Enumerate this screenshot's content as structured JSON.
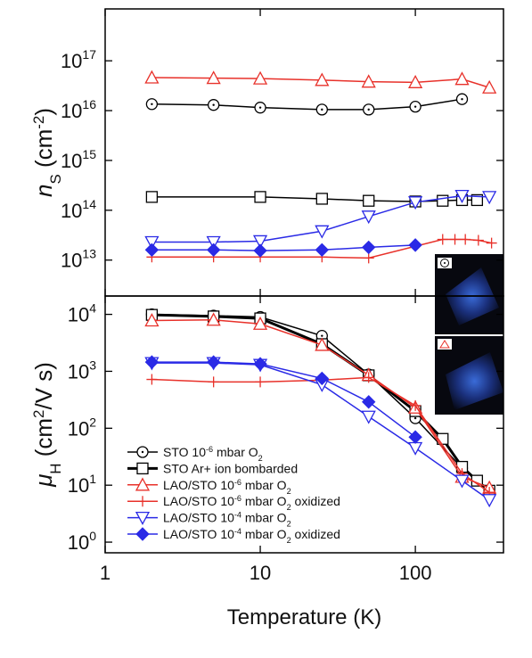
{
  "chart_data": [
    {
      "type": "line",
      "xscale": "log",
      "yscale": "log",
      "xlim": [
        1,
        370
      ],
      "ylim": [
        1900000000000.0,
        1.1e+18
      ],
      "yticks": [
        {
          "value": 10000000000000.0,
          "label": "10",
          "exponent": "13"
        },
        {
          "value": 100000000000000.0,
          "label": "10",
          "exponent": "14"
        },
        {
          "value": 1000000000000000.0,
          "label": "10",
          "exponent": "15"
        },
        {
          "value": 1e+16,
          "label": "10",
          "exponent": "16"
        },
        {
          "value": 1e+17,
          "label": "10",
          "exponent": "17"
        }
      ],
      "ylabel": [
        {
          "text": "n",
          "style": "italic"
        },
        {
          "text": "S",
          "style": "sub"
        },
        {
          "text": " (cm",
          "style": "normal"
        },
        {
          "text": "-2",
          "style": "sup"
        },
        {
          "text": ")",
          "style": "normal"
        }
      ],
      "series": [
        {
          "color": "#000000",
          "marker": "circle-dot",
          "x": [
            2,
            5,
            10,
            25,
            50,
            100,
            200
          ],
          "values": [
            1.35e+16,
            1.3e+16,
            1.15e+16,
            1.05e+16,
            1.05e+16,
            1.2e+16,
            1.7e+16
          ]
        },
        {
          "color": "#000000",
          "marker": "square",
          "x": [
            2,
            10,
            25,
            50,
            100,
            150,
            200,
            250
          ],
          "values": [
            185000000000000.0,
            185000000000000.0,
            170000000000000.0,
            155000000000000.0,
            150000000000000.0,
            155000000000000.0,
            160000000000000.0,
            160000000000000.0
          ]
        },
        {
          "color": "#e8312a",
          "marker": "triangle",
          "x": [
            2,
            5,
            10,
            25,
            50,
            100,
            200,
            300
          ],
          "values": [
            4.6e+16,
            4.5e+16,
            4.4e+16,
            4.1e+16,
            3.8e+16,
            3.7e+16,
            4.3e+16,
            2.9e+16
          ]
        },
        {
          "color": "#e8312a",
          "marker": "plus",
          "x": [
            2,
            5,
            10,
            25,
            50,
            150,
            180,
            210,
            255,
            310
          ],
          "values": [
            11500000000000.0,
            11500000000000.0,
            11500000000000.0,
            11500000000000.0,
            11000000000000.0,
            26000000000000.0,
            26000000000000.0,
            26000000000000.0,
            25000000000000.0,
            22000000000000.0
          ]
        },
        {
          "color": "#2a2ae6",
          "marker": "triangle-down",
          "x": [
            2,
            5,
            10,
            25,
            50,
            100,
            200,
            300
          ],
          "values": [
            23000000000000.0,
            23000000000000.0,
            24000000000000.0,
            38000000000000.0,
            75000000000000.0,
            145000000000000.0,
            195000000000000.0,
            185000000000000.0
          ]
        },
        {
          "color": "#2a2ae6",
          "marker": "diamond",
          "x": [
            2,
            5,
            10,
            25,
            50,
            100
          ],
          "values": [
            16000000000000.0,
            16000000000000.0,
            15500000000000.0,
            16000000000000.0,
            18000000000000.0,
            20000000000000.0
          ]
        }
      ]
    },
    {
      "type": "line",
      "xscale": "log",
      "yscale": "log",
      "xlim": [
        1,
        370
      ],
      "xticks": [
        1,
        10,
        100
      ],
      "xlabel": "Temperature (K)",
      "ylim": [
        0.65,
        21000
      ],
      "yticks": [
        {
          "value": 1,
          "label": "10",
          "exponent": "0"
        },
        {
          "value": 10,
          "label": "10",
          "exponent": "1"
        },
        {
          "value": 100,
          "label": "10",
          "exponent": "2"
        },
        {
          "value": 1000,
          "label": "10",
          "exponent": "3"
        },
        {
          "value": 10000,
          "label": "10",
          "exponent": "4"
        }
      ],
      "ylabel": [
        {
          "text": "μ",
          "style": "italic"
        },
        {
          "text": "H",
          "style": "sub"
        },
        {
          "text": " (cm",
          "style": "normal"
        },
        {
          "text": "2",
          "style": "sup"
        },
        {
          "text": "/V s)",
          "style": "normal"
        }
      ],
      "legend": "lower left",
      "series": [
        {
          "name": [
            {
              "text": "STO 10",
              "style": "normal"
            },
            {
              "text": "-6",
              "style": "sup"
            },
            {
              "text": " mbar O",
              "style": "normal"
            },
            {
              "text": "2",
              "style": "sub"
            }
          ],
          "color": "#000000",
          "marker": "circle-dot",
          "width": 1.5,
          "x": [
            2,
            5,
            10,
            25,
            50,
            100,
            200
          ],
          "values": [
            10000,
            9500,
            9000,
            4200,
            880,
            150,
            20
          ]
        },
        {
          "name": [
            {
              "text": "STO Ar+ ion bombarded",
              "style": "normal"
            }
          ],
          "color": "#000000",
          "marker": "square",
          "width": 3,
          "x": [
            2,
            5,
            10,
            25,
            50,
            100,
            150,
            200,
            250,
            300
          ],
          "values": [
            9800,
            9200,
            8500,
            3000,
            850,
            200,
            65,
            21,
            12,
            8
          ]
        },
        {
          "name": [
            {
              "text": "LAO/STO 10",
              "style": "normal"
            },
            {
              "text": "-6",
              "style": "sup"
            },
            {
              "text": " mbar O",
              "style": "normal"
            },
            {
              "text": "2",
              "style": "sub"
            }
          ],
          "color": "#e8312a",
          "marker": "triangle",
          "width": 1.5,
          "x": [
            2,
            5,
            10,
            25,
            50,
            100,
            200,
            300
          ],
          "values": [
            7800,
            8000,
            6800,
            2900,
            860,
            230,
            14,
            9
          ]
        },
        {
          "name": [
            {
              "text": "LAO/STO 10",
              "style": "normal"
            },
            {
              "text": "-6",
              "style": "sup"
            },
            {
              "text": " mbar O",
              "style": "normal"
            },
            {
              "text": "2",
              "style": "sub"
            },
            {
              "text": " oxidized",
              "style": "normal"
            }
          ],
          "color": "#e8312a",
          "marker": "plus",
          "width": 1.5,
          "x": [
            2,
            5,
            10,
            25,
            50,
            100,
            200,
            300
          ],
          "values": [
            720,
            650,
            650,
            700,
            780,
            250,
            16,
            7.5
          ]
        },
        {
          "name": [
            {
              "text": "LAO/STO 10",
              "style": "normal"
            },
            {
              "text": "-4",
              "style": "sup"
            },
            {
              "text": " mbar O",
              "style": "normal"
            },
            {
              "text": "2",
              "style": "sub"
            }
          ],
          "color": "#2a2ae6",
          "marker": "triangle-down",
          "width": 1.5,
          "x": [
            2,
            5,
            10,
            25,
            50,
            100,
            200,
            300
          ],
          "values": [
            1400,
            1400,
            1300,
            580,
            160,
            45,
            12,
            5.5
          ]
        },
        {
          "name": [
            {
              "text": "LAO/STO 10",
              "style": "normal"
            },
            {
              "text": "-4",
              "style": "sup"
            },
            {
              "text": " mbar O",
              "style": "normal"
            },
            {
              "text": "2",
              "style": "sub"
            },
            {
              "text": " oxidized",
              "style": "normal"
            }
          ],
          "color": "#2a2ae6",
          "marker": "diamond",
          "width": 1.5,
          "x": [
            2,
            5,
            10,
            25,
            50,
            100
          ],
          "values": [
            1450,
            1450,
            1350,
            750,
            290,
            70
          ]
        }
      ]
    }
  ]
}
